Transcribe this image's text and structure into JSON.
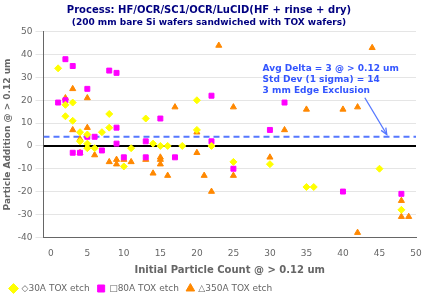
{
  "chart_data": {
    "type": "scatter",
    "title": "Process: HF/OCR/SC1/OCR/LuCID(HF + rinse + dry)",
    "subtitle": "(200 mm bare Si wafers sandwiched with TOX wafers)",
    "title_color": "#000080",
    "x_label": "Initial Particle Count @ > 0.12 um",
    "y_label": "Particle Addition @ > 0.12 um",
    "xlim": [
      -1,
      50
    ],
    "ylim": [
      -40,
      50
    ],
    "xticks": [
      0,
      5,
      10,
      15,
      20,
      25,
      30,
      35,
      40,
      45,
      50
    ],
    "yticks": [
      -40,
      -30,
      -20,
      -10,
      0,
      10,
      20,
      30,
      40,
      50
    ],
    "grid": "y",
    "legend": "lower left",
    "series": [
      {
        "name": "◇30A TOX etch",
        "color": "#FFFF00",
        "marker": "diamond",
        "x": [
          1,
          2,
          2,
          3,
          3,
          4,
          4,
          5,
          5,
          5,
          6,
          7,
          8,
          8,
          10,
          11,
          13,
          14,
          15,
          16,
          18,
          20,
          20,
          22,
          25,
          30,
          35,
          36,
          45,
          48
        ],
        "values": [
          34,
          18,
          13,
          19,
          11,
          6,
          2,
          1,
          -1,
          5,
          -1,
          6,
          8,
          14,
          -9,
          -1,
          12,
          1,
          0,
          0,
          0,
          20,
          7,
          0,
          -7,
          -8,
          -18,
          -18,
          -10,
          -28
        ]
      },
      {
        "name": "□80A TOX etch",
        "color": "#FF00FF",
        "marker": "square",
        "x": [
          1,
          2,
          2,
          3,
          3,
          4,
          5,
          5,
          6,
          7,
          8,
          9,
          9,
          9,
          10,
          13,
          13,
          15,
          17,
          22,
          22,
          25,
          30,
          32,
          40,
          48
        ],
        "values": [
          19,
          20,
          38,
          35,
          -3,
          -3,
          25,
          4,
          4,
          -2,
          33,
          32,
          8,
          1,
          -5,
          2,
          -5,
          12,
          -5,
          22,
          2,
          -10,
          7,
          19,
          -20,
          -21
        ]
      },
      {
        "name": "△350A TOX etch",
        "color": "#FF8800",
        "marker": "triangle",
        "x": [
          2,
          3,
          3,
          4,
          4,
          5,
          5,
          6,
          8,
          9,
          9,
          10,
          11,
          13,
          14,
          15,
          15,
          15,
          16,
          17,
          20,
          20,
          21,
          22,
          23,
          25,
          25,
          30,
          32,
          35,
          40,
          42,
          42,
          44,
          48,
          48,
          49
        ],
        "values": [
          21,
          25,
          7,
          3,
          -3,
          21,
          8,
          -4,
          -7,
          -6,
          -8,
          -6,
          -7,
          -6,
          -12,
          -6,
          -5,
          -8,
          -13,
          17,
          -3,
          6,
          -13,
          -20,
          44,
          -13,
          17,
          -5,
          7,
          16,
          16,
          17,
          -38,
          43,
          -24,
          -31,
          -31
        ]
      }
    ],
    "annotations": [
      {
        "type": "hline",
        "y": 0,
        "color": "#000000",
        "line_style": "solid"
      },
      {
        "type": "hline",
        "y": 4,
        "color": "#5577FF",
        "line_style": "dashed"
      },
      {
        "type": "text",
        "text": "Avg Delta = 3 @ > 0.12 um\nStd Dev (1 sigma) = 14\n3 mm Edge Exclusion",
        "x": 29,
        "y": 36,
        "color": "#3355FF",
        "arrow_to": [
          46,
          5
        ],
        "arrow_color": "#5577FF"
      }
    ]
  }
}
